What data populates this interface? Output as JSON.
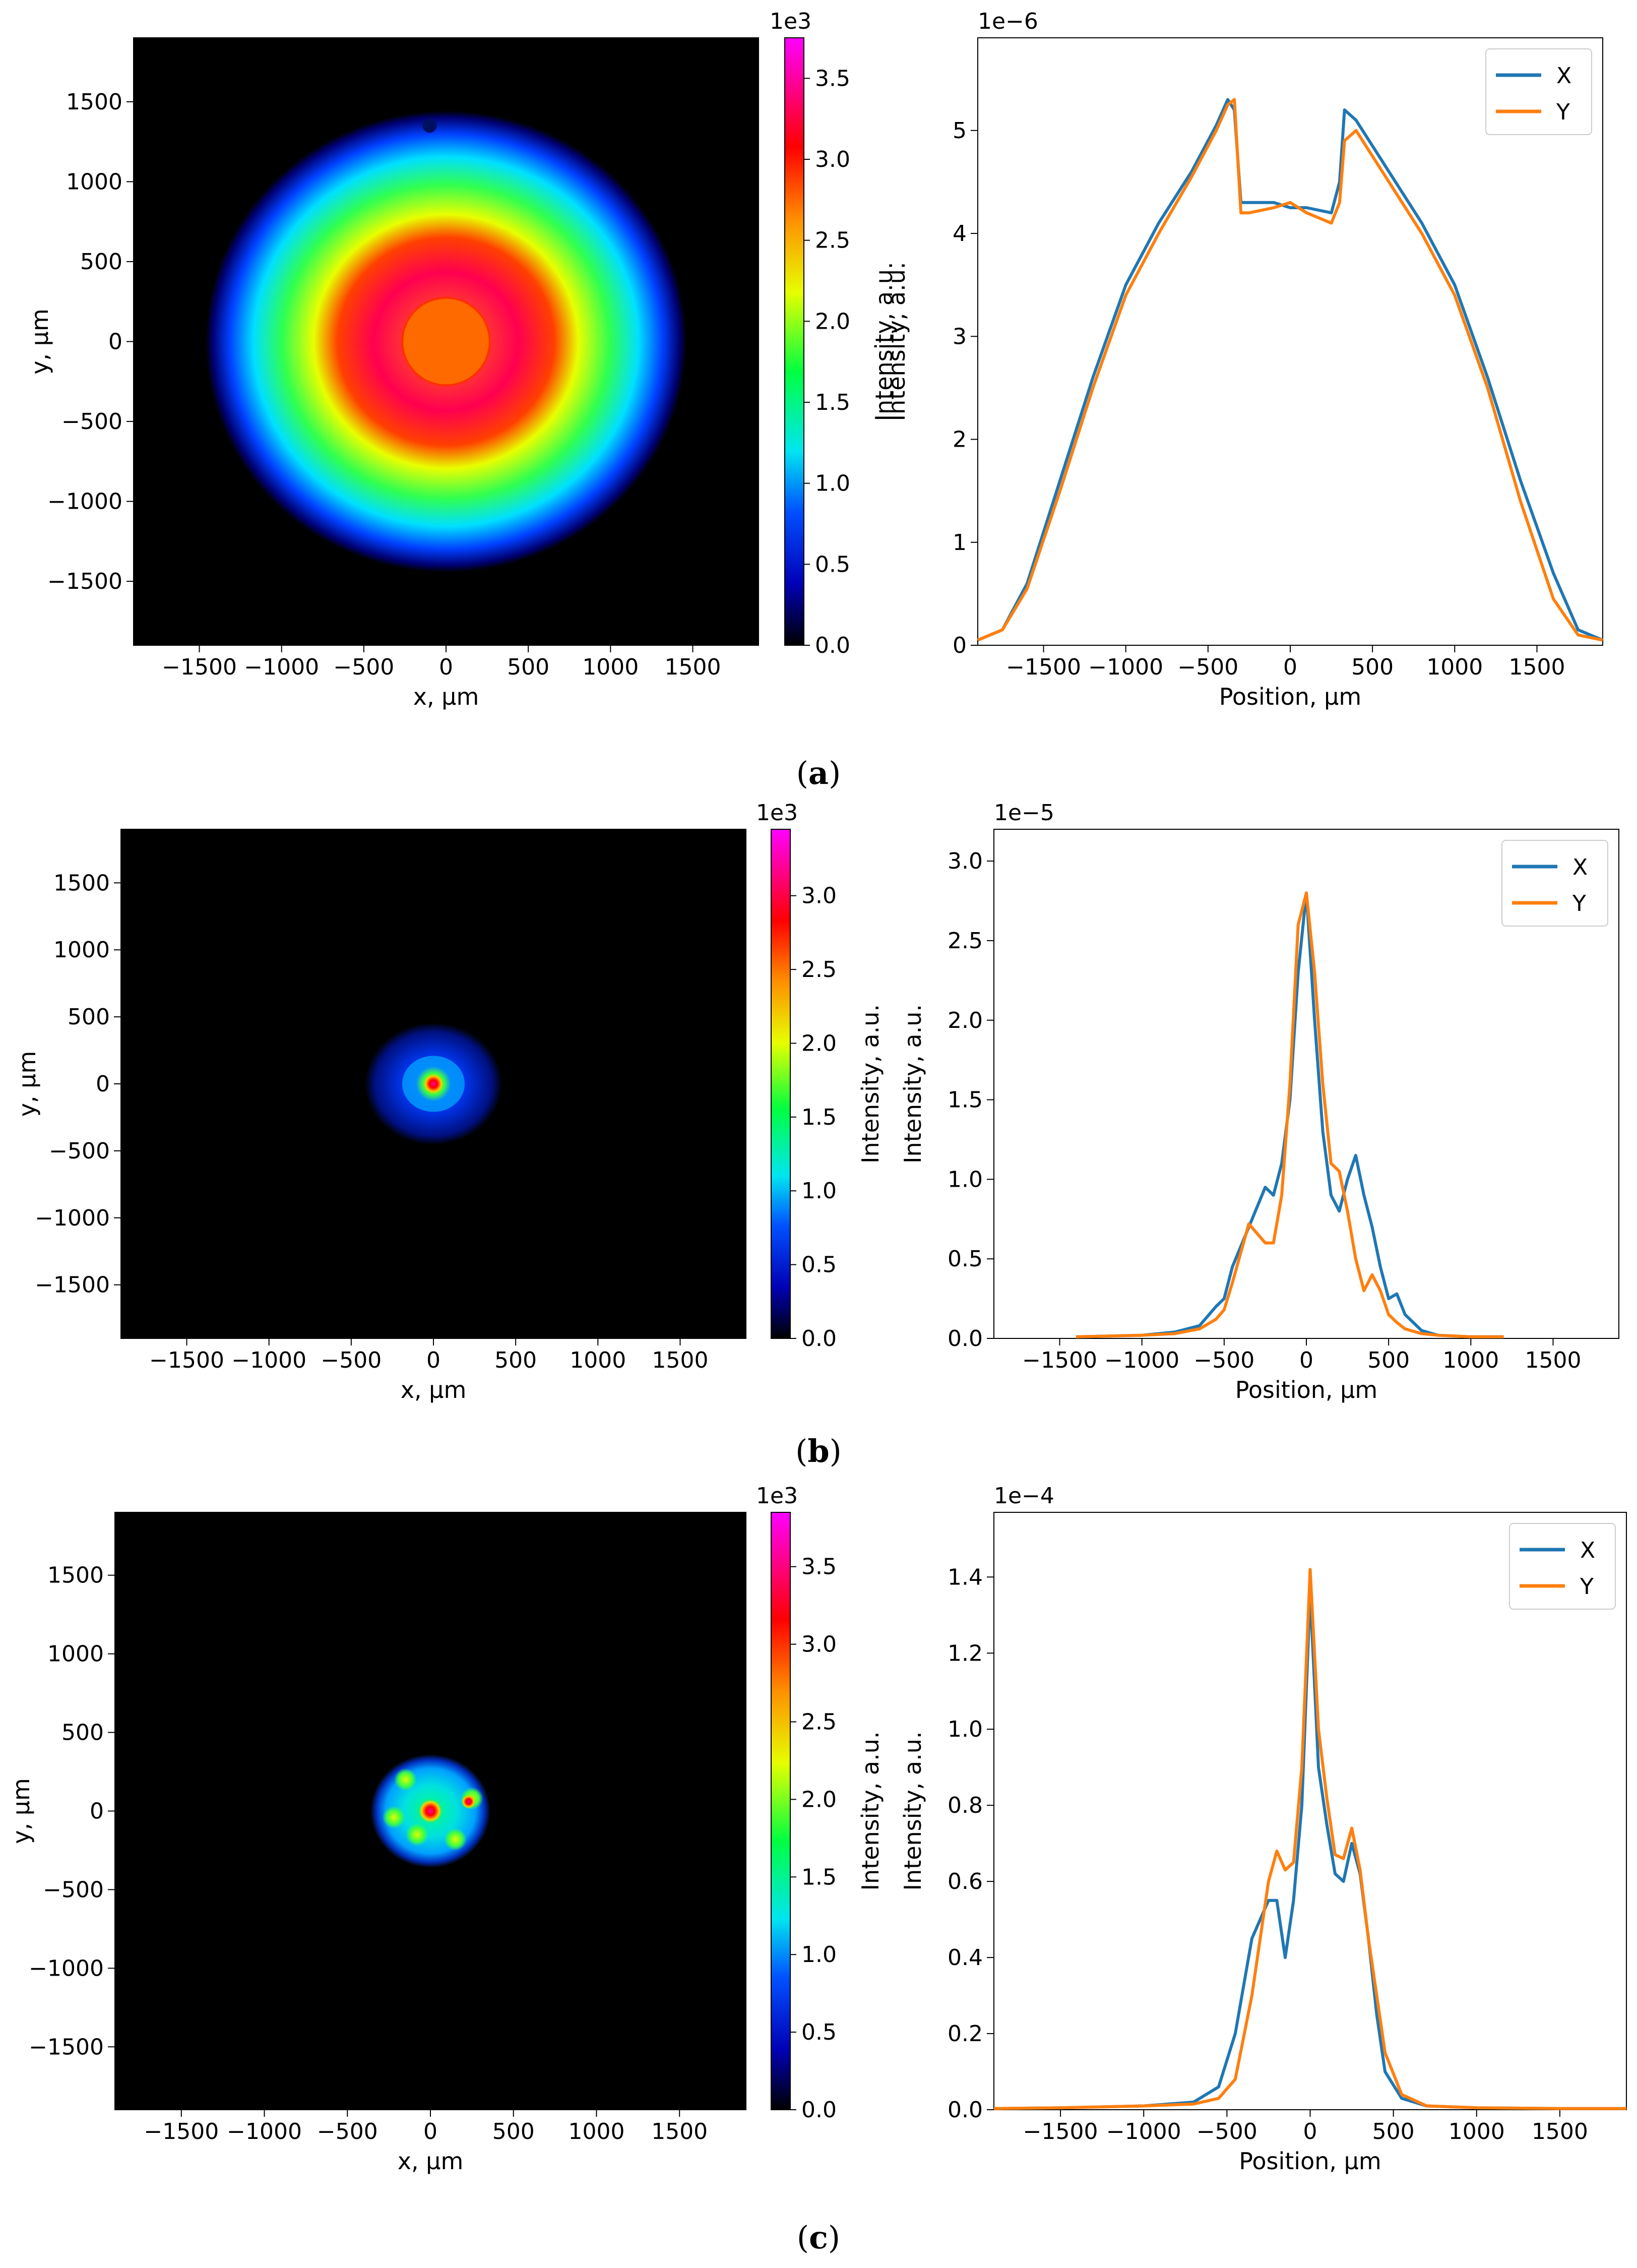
{
  "colors": {
    "X": "#1f77b4",
    "Y": "#ff7f0e"
  },
  "panels": [
    {
      "caption_letter": "a",
      "map": {
        "type": "heatmap",
        "beam": "ring",
        "cb_max": 3.75,
        "cb_ticks": [
          "0.0",
          "0.5",
          "1.0",
          "1.5",
          "2.0",
          "2.5",
          "3.0",
          "3.5"
        ],
        "cb_multiplier": "1e3",
        "cb_label": "Intensity, a.u.",
        "x_ticks": [
          "−1500",
          "−1000",
          "−500",
          "0",
          "500",
          "1000",
          "1500"
        ],
        "y_ticks": [
          "1500",
          "1000",
          "500",
          "0",
          "−500",
          "−1000",
          "−1500"
        ],
        "xlabel": "x, μm",
        "ylabel": "y, μm"
      },
      "profile": {
        "type": "line",
        "multiplier": "1e−6",
        "ylabel": "Intensity, a.u.",
        "xlabel": "Position, μm",
        "xlim": [
          -1900,
          1900
        ],
        "ylim": [
          0,
          5.9
        ],
        "x_ticks": [
          "−1500",
          "−1000",
          "−500",
          "0",
          "500",
          "1000",
          "1500"
        ],
        "y_ticks": [
          "0",
          "1",
          "2",
          "3",
          "4",
          "5"
        ],
        "legend": [
          "X",
          "Y"
        ],
        "series": [
          {
            "name": "X",
            "x": [
              -1900,
              -1750,
              -1600,
              -1400,
              -1200,
              -1000,
              -800,
              -600,
              -450,
              -380,
              -340,
              -300,
              -250,
              -100,
              0,
              100,
              250,
              300,
              330,
              400,
              600,
              800,
              1000,
              1200,
              1400,
              1600,
              1750,
              1900
            ],
            "y": [
              0.05,
              0.15,
              0.6,
              1.6,
              2.6,
              3.5,
              4.1,
              4.6,
              5.05,
              5.3,
              5.2,
              4.3,
              4.3,
              4.3,
              4.25,
              4.25,
              4.2,
              4.5,
              5.2,
              5.1,
              4.6,
              4.1,
              3.5,
              2.6,
              1.6,
              0.7,
              0.15,
              0.05
            ]
          },
          {
            "name": "Y",
            "x": [
              -1900,
              -1750,
              -1600,
              -1400,
              -1200,
              -1000,
              -800,
              -600,
              -450,
              -380,
              -340,
              -300,
              -250,
              -100,
              0,
              100,
              250,
              300,
              330,
              400,
              600,
              800,
              1000,
              1200,
              1400,
              1600,
              1750,
              1900
            ],
            "y": [
              0.05,
              0.15,
              0.55,
              1.5,
              2.5,
              3.4,
              4.0,
              4.55,
              5.0,
              5.25,
              5.3,
              4.2,
              4.2,
              4.25,
              4.3,
              4.2,
              4.1,
              4.3,
              4.9,
              5.0,
              4.5,
              4.0,
              3.4,
              2.5,
              1.4,
              0.45,
              0.1,
              0.05
            ]
          }
        ]
      }
    },
    {
      "caption_letter": "b",
      "map": {
        "type": "heatmap",
        "beam": "small",
        "cb_max": 3.45,
        "cb_ticks": [
          "0.0",
          "0.5",
          "1.0",
          "1.5",
          "2.0",
          "2.5",
          "3.0"
        ],
        "cb_multiplier": "1e3",
        "cb_label": "Intensity, a.u.",
        "x_ticks": [
          "−1500",
          "−1000",
          "−500",
          "0",
          "500",
          "1000",
          "1500"
        ],
        "y_ticks": [
          "1500",
          "1000",
          "500",
          "0",
          "−500",
          "−1000",
          "−1500"
        ],
        "xlabel": "x, μm",
        "ylabel": "y, μm"
      },
      "profile": {
        "type": "line",
        "multiplier": "1e−5",
        "ylabel": "Intensity, a.u.",
        "xlabel": "Position, μm",
        "xlim": [
          -1900,
          1900
        ],
        "ylim": [
          0,
          3.2
        ],
        "x_ticks": [
          "−1500",
          "−1000",
          "−500",
          "0",
          "500",
          "1000",
          "1500"
        ],
        "y_ticks": [
          "0.0",
          "0.5",
          "1.0",
          "1.5",
          "2.0",
          "2.5",
          "3.0"
        ],
        "legend": [
          "X",
          "Y"
        ],
        "series": [
          {
            "name": "X",
            "x": [
              -1400,
              -1000,
              -800,
              -650,
              -550,
              -500,
              -450,
              -350,
              -250,
              -200,
              -150,
              -100,
              -50,
              0,
              50,
              100,
              150,
              200,
              250,
              300,
              350,
              400,
              450,
              500,
              550,
              600,
              700,
              800,
              1000,
              1200
            ],
            "y": [
              0.01,
              0.02,
              0.04,
              0.08,
              0.2,
              0.25,
              0.45,
              0.7,
              0.95,
              0.9,
              1.1,
              1.5,
              2.3,
              2.8,
              2.0,
              1.3,
              0.9,
              0.8,
              1.0,
              1.15,
              0.9,
              0.7,
              0.45,
              0.25,
              0.28,
              0.15,
              0.05,
              0.02,
              0.01,
              0.01
            ]
          },
          {
            "name": "Y",
            "x": [
              -1400,
              -1000,
              -800,
              -650,
              -550,
              -500,
              -450,
              -350,
              -250,
              -200,
              -150,
              -100,
              -50,
              0,
              50,
              100,
              150,
              200,
              250,
              300,
              350,
              400,
              450,
              500,
              550,
              600,
              700,
              800,
              1000,
              1200
            ],
            "y": [
              0.01,
              0.02,
              0.03,
              0.06,
              0.12,
              0.18,
              0.35,
              0.72,
              0.6,
              0.6,
              0.9,
              1.6,
              2.6,
              2.8,
              2.3,
              1.6,
              1.1,
              1.05,
              0.8,
              0.5,
              0.3,
              0.4,
              0.3,
              0.15,
              0.1,
              0.06,
              0.03,
              0.02,
              0.01,
              0.01
            ]
          }
        ]
      }
    },
    {
      "caption_letter": "c",
      "map": {
        "type": "heatmap",
        "beam": "medium",
        "cb_max": 3.85,
        "cb_ticks": [
          "0.0",
          "0.5",
          "1.0",
          "1.5",
          "2.0",
          "2.5",
          "3.0",
          "3.5"
        ],
        "cb_multiplier": "1e3",
        "cb_label": "Intensity, a.u.",
        "x_ticks": [
          "−1500",
          "−1000",
          "−500",
          "0",
          "500",
          "1000",
          "1500"
        ],
        "y_ticks": [
          "1500",
          "1000",
          "500",
          "0",
          "−500",
          "−1000",
          "−1500"
        ],
        "xlabel": "x, μm",
        "ylabel": "y, μm"
      },
      "profile": {
        "type": "line",
        "multiplier": "1e−4",
        "ylabel": "Intensity, a.u.",
        "xlabel": "Position, μm",
        "xlim": [
          -1900,
          1900
        ],
        "ylim": [
          0,
          1.57
        ],
        "x_ticks": [
          "−1500",
          "−1000",
          "−500",
          "0",
          "500",
          "1000",
          "1500"
        ],
        "y_ticks": [
          "0.0",
          "0.2",
          "0.4",
          "0.6",
          "0.8",
          "1.0",
          "1.2",
          "1.4"
        ],
        "legend": [
          "X",
          "Y"
        ],
        "series": [
          {
            "name": "X",
            "x": [
              -1900,
              -1500,
              -1000,
              -700,
              -550,
              -450,
              -350,
              -250,
              -200,
              -150,
              -100,
              -50,
              0,
              50,
              100,
              150,
              200,
              250,
              300,
              350,
              400,
              450,
              550,
              700,
              1000,
              1500,
              1900
            ],
            "y": [
              0.003,
              0.005,
              0.01,
              0.02,
              0.06,
              0.2,
              0.45,
              0.55,
              0.55,
              0.4,
              0.55,
              0.8,
              1.36,
              0.9,
              0.75,
              0.62,
              0.6,
              0.7,
              0.62,
              0.45,
              0.25,
              0.1,
              0.03,
              0.01,
              0.005,
              0.003,
              0.003
            ]
          },
          {
            "name": "Y",
            "x": [
              -1900,
              -1500,
              -1000,
              -700,
              -550,
              -450,
              -350,
              -250,
              -200,
              -150,
              -100,
              -50,
              0,
              50,
              100,
              150,
              200,
              250,
              300,
              350,
              400,
              450,
              550,
              700,
              1000,
              1500,
              1900
            ],
            "y": [
              0.003,
              0.005,
              0.01,
              0.015,
              0.03,
              0.08,
              0.3,
              0.6,
              0.68,
              0.63,
              0.65,
              0.9,
              1.42,
              1.0,
              0.82,
              0.67,
              0.66,
              0.74,
              0.63,
              0.45,
              0.3,
              0.15,
              0.04,
              0.01,
              0.005,
              0.003,
              0.003
            ]
          }
        ]
      }
    }
  ]
}
